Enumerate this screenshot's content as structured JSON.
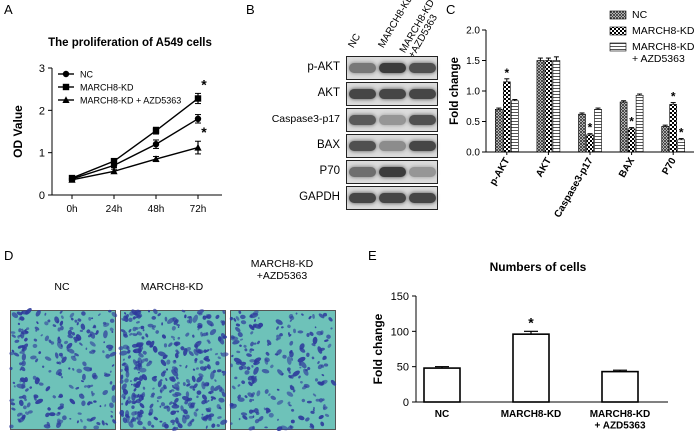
{
  "panels": {
    "a": "A",
    "b": "B",
    "c": "C",
    "d": "D",
    "e": "E"
  },
  "colors": {
    "ink": "#000000",
    "nc": "#6b6b6b",
    "kd": "#000000",
    "combo": "#bdbdbd",
    "cell_bg": "#6ec2b9",
    "cell_dot": "#2e3a9c",
    "blot_bg": "#d9d9d9"
  },
  "icons": {
    "nc_fill": "dense-crosshatch-pattern",
    "kd_fill": "checker-pattern",
    "combo_fill": "horizontal-stripe-pattern"
  },
  "chart_data": [
    {
      "id": "A",
      "type": "line",
      "title": "The proliferation of A549 cells",
      "xlabel": "",
      "ylabel": "OD Value",
      "categories": [
        "0h",
        "24h",
        "48h",
        "72h"
      ],
      "ylim": [
        0,
        3
      ],
      "yticks": [
        "0",
        "1",
        "2",
        "3"
      ],
      "legend_position": "top-left",
      "series": [
        {
          "name": "NC",
          "marker": "circle",
          "values": [
            0.38,
            0.7,
            1.2,
            1.8
          ],
          "err": [
            0.05,
            0.05,
            0.1,
            0.1
          ]
        },
        {
          "name": "MARCH8-KD",
          "marker": "square",
          "values": [
            0.4,
            0.8,
            1.52,
            2.28
          ],
          "err": [
            0.05,
            0.05,
            0.08,
            0.12
          ]
        },
        {
          "name": "MARCH8-KD + AZD5363",
          "marker": "triangle",
          "values": [
            0.36,
            0.56,
            0.85,
            1.12
          ],
          "err": [
            0.05,
            0.05,
            0.06,
            0.15
          ]
        }
      ],
      "annotations": [
        {
          "text": "*",
          "x": "72h",
          "series": 1
        },
        {
          "text": "*",
          "x": "72h",
          "series": 2
        }
      ]
    },
    {
      "id": "C",
      "type": "bar",
      "title": "",
      "xlabel": "",
      "ylabel": "Fold change",
      "categories": [
        "p-AKT",
        "AKT",
        "Caspase3-p17",
        "BAX",
        "P70"
      ],
      "ylim": [
        0,
        2.0
      ],
      "yticks": [
        "0.0",
        "0.5",
        "1.0",
        "1.5",
        "2.0"
      ],
      "legend_position": "top-right",
      "series": [
        {
          "name": "NC",
          "values": [
            0.7,
            1.5,
            0.62,
            0.82,
            0.42
          ],
          "err": [
            0.02,
            0.04,
            0.02,
            0.02,
            0.02
          ]
        },
        {
          "name": "MARCH8-KD",
          "values": [
            1.15,
            1.5,
            0.28,
            0.38,
            0.78
          ],
          "err": [
            0.05,
            0.04,
            0.02,
            0.02,
            0.03
          ]
        },
        {
          "name": "MARCH8-KD\n+ AZD5363",
          "values": [
            0.84,
            1.5,
            0.7,
            0.93,
            0.2
          ],
          "err": [
            0.02,
            0.06,
            0.02,
            0.02,
            0.02
          ]
        }
      ],
      "annotations": [
        {
          "text": "*",
          "category": 0,
          "series": 1
        },
        {
          "text": "*",
          "category": 2,
          "series": 1
        },
        {
          "text": "*",
          "category": 3,
          "series": 1
        },
        {
          "text": "*",
          "category": 4,
          "series": 1
        },
        {
          "text": "*",
          "category": 4,
          "series": 2
        }
      ]
    },
    {
      "id": "E",
      "type": "bar",
      "title": "Numbers of cells",
      "xlabel": "",
      "ylabel": "Fold change",
      "categories": [
        "NC",
        "MARCH8-KD",
        "MARCH8-KD\n+ AZD5363"
      ],
      "ylim": [
        0,
        150
      ],
      "yticks": [
        "0",
        "50",
        "100",
        "150"
      ],
      "series": [
        {
          "name": "",
          "values": [
            48,
            96,
            43
          ],
          "err": [
            2,
            4,
            2
          ]
        }
      ],
      "annotations": [
        {
          "text": "*",
          "category": 1
        }
      ]
    }
  ],
  "blot": {
    "lane_headers": [
      "NC",
      "MARCH8-KD",
      "MARCH8-KD\n+AZD5363"
    ],
    "rows": [
      {
        "label": "p-AKT",
        "intensity": [
          0.55,
          0.85,
          0.75
        ]
      },
      {
        "label": "AKT",
        "intensity": [
          0.8,
          0.8,
          0.8
        ]
      },
      {
        "label": "Caspase3-p17",
        "intensity": [
          0.7,
          0.4,
          0.75
        ]
      },
      {
        "label": "BAX",
        "intensity": [
          0.75,
          0.45,
          0.8
        ]
      },
      {
        "label": "P70",
        "intensity": [
          0.6,
          0.85,
          0.4
        ]
      },
      {
        "label": "GAPDH",
        "intensity": [
          0.8,
          0.8,
          0.8
        ]
      }
    ]
  },
  "migration": {
    "captions": [
      "NC",
      "MARCH8-KD",
      "MARCH8-KD\n+AZD5363"
    ],
    "density": [
      0.55,
      0.85,
      0.5
    ]
  }
}
